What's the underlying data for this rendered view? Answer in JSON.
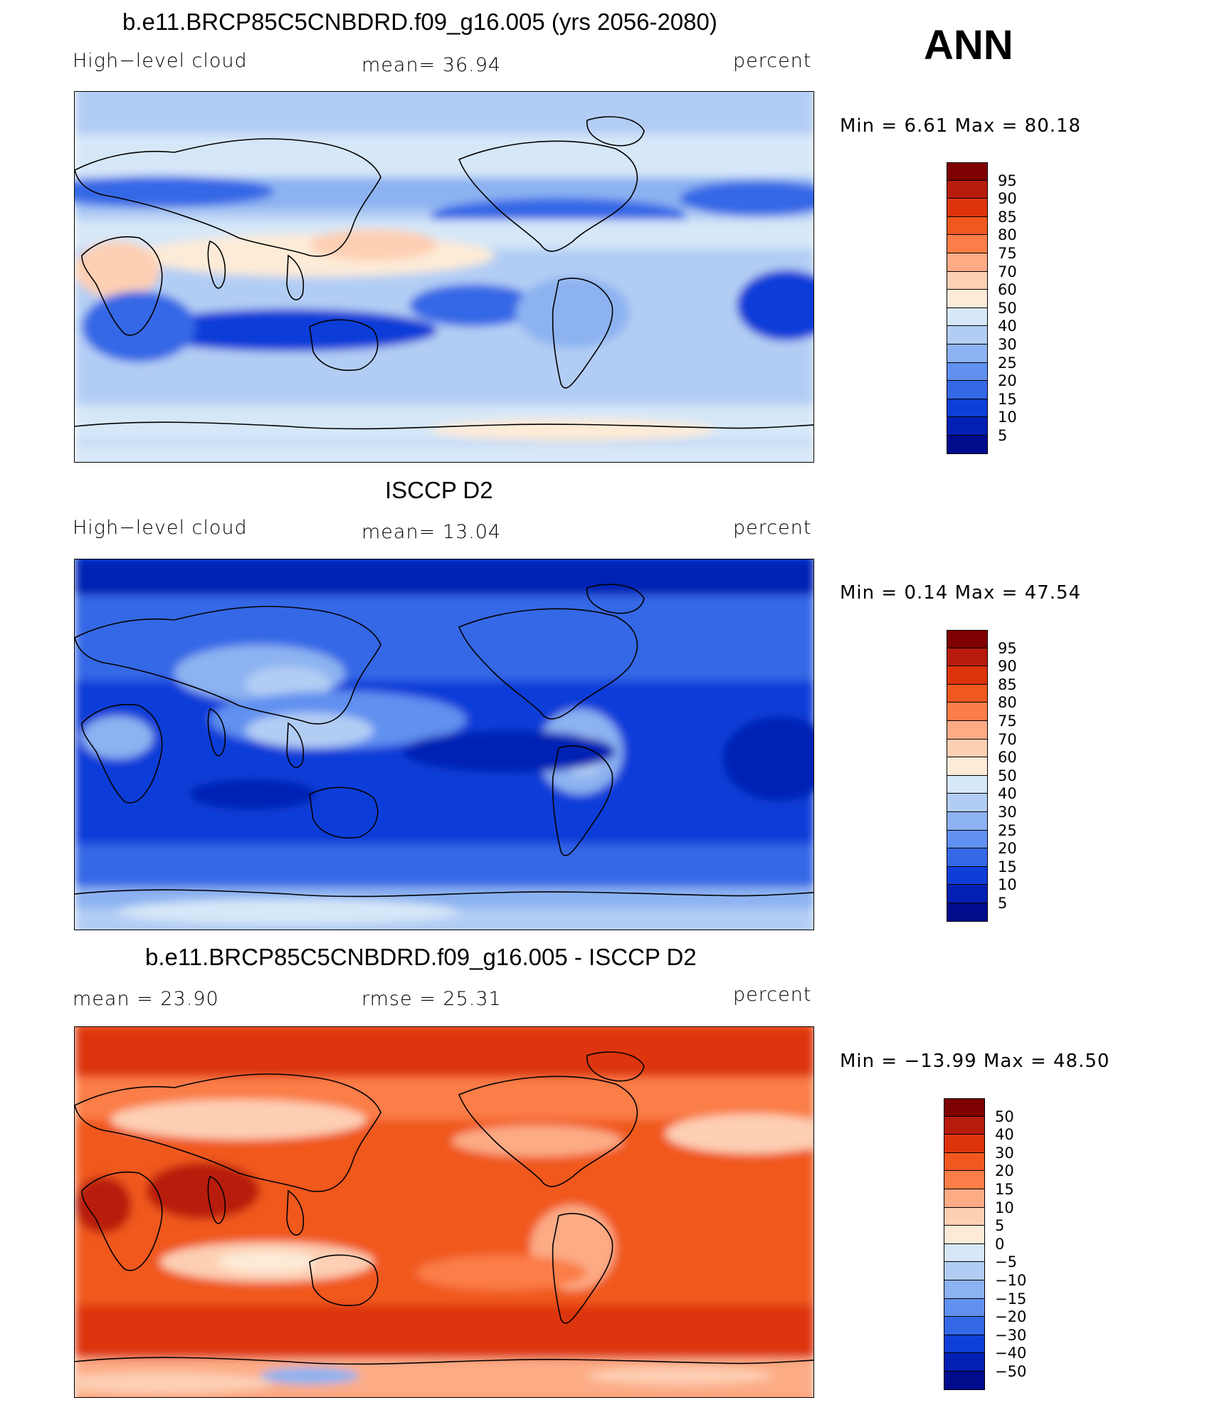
{
  "season": "ANN",
  "panels": [
    {
      "title": "b.e11.BRCP85C5CNBDRD.f09_g16.005 (yrs 2056-2080)",
      "left": "High−level cloud",
      "center": "mean=   36.94",
      "units": "percent",
      "minmax": "Min =    6.61  Max =   80.18",
      "colorbar_levels": [
        "95",
        "90",
        "85",
        "80",
        "75",
        "70",
        "60",
        "50",
        "40",
        "30",
        "25",
        "20",
        "15",
        "10",
        "5"
      ],
      "colors": [
        "#7f0000",
        "#b81c0d",
        "#dd340c",
        "#f0581f",
        "#fb7d47",
        "#fcab85",
        "#fdcfb3",
        "#fdebd7",
        "#d6e7f8",
        "#b2cdf4",
        "#8cb2f1",
        "#6090f0",
        "#3468e6",
        "#0e3ed8",
        "#0420b4",
        "#000c8c"
      ]
    },
    {
      "title": "ISCCP D2",
      "left": "High−level cloud",
      "center": "mean=   13.04",
      "units": "percent",
      "minmax": "Min =    0.14  Max =   47.54",
      "colorbar_levels": [
        "95",
        "90",
        "85",
        "80",
        "75",
        "70",
        "60",
        "50",
        "40",
        "30",
        "25",
        "20",
        "15",
        "10",
        "5"
      ],
      "colors": [
        "#7f0000",
        "#b81c0d",
        "#dd340c",
        "#f0581f",
        "#fb7d47",
        "#fcab85",
        "#fdcfb3",
        "#fdebd7",
        "#d6e7f8",
        "#b2cdf4",
        "#8cb2f1",
        "#6090f0",
        "#3468e6",
        "#0e3ed8",
        "#0420b4",
        "#000c8c"
      ]
    },
    {
      "title": "b.e11.BRCP85C5CNBDRD.f09_g16.005 - ISCCP D2",
      "left": "mean =    23.90",
      "center": "rmse =    25.31",
      "units": "percent",
      "minmax": "Min = −13.99  Max =    48.50",
      "colorbar_levels": [
        "50",
        "40",
        "30",
        "20",
        "15",
        "10",
        "5",
        "0",
        "−5",
        "−10",
        "−15",
        "−20",
        "−30",
        "−40",
        "−50"
      ],
      "colors": [
        "#7f0000",
        "#b81c0d",
        "#dd340c",
        "#f0581f",
        "#fb7d47",
        "#fcab85",
        "#fdcfb3",
        "#fdebd7",
        "#d6e7f8",
        "#b2cdf4",
        "#8cb2f1",
        "#6090f0",
        "#3468e6",
        "#0e3ed8",
        "#0420b4",
        "#000c8c"
      ]
    }
  ]
}
